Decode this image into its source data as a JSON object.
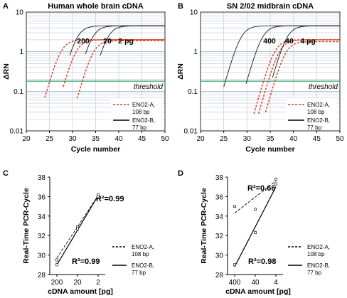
{
  "chart_data": [
    {
      "panel": "A",
      "type": "line",
      "title": "Human whole brain cDNA",
      "xlabel": "Cycle number",
      "ylabel": "ΔRN",
      "xlim": [
        20,
        50
      ],
      "ylim_log": [
        0.01,
        10
      ],
      "log_y": true,
      "grid": true,
      "xticks": [
        "20",
        "25",
        "30",
        "35",
        "40",
        "45",
        "50"
      ],
      "yticks": [
        "0.01",
        "0.1",
        "1",
        "10"
      ],
      "threshold": {
        "label": "threshold",
        "value": 0.18,
        "color": "#2e9e6b"
      },
      "annotations": [
        "200",
        "20",
        "2 pg"
      ],
      "legend_position": "bottom-right",
      "series": [
        {
          "name": "ENO2-A, 108 bp",
          "style": "dashed",
          "color": "#d9432a",
          "curves": [
            {
              "midpoint": 27.5,
              "plateau": 2.0,
              "start": 24
            },
            {
              "midpoint": 30.8,
              "plateau": 2.0,
              "start": 28
            },
            {
              "midpoint": 34.5,
              "plateau": 1.9,
              "start": 31
            }
          ]
        },
        {
          "name": "ENO2-B, 77 bp",
          "style": "solid",
          "color": "#000000",
          "curves": [
            {
              "midpoint": 31.0,
              "plateau": 4.5,
              "start": 29.4
            },
            {
              "midpoint": 34.3,
              "plateau": 4.5,
              "start": 32.8
            },
            {
              "midpoint": 37.6,
              "plateau": 4.5,
              "start": 36.0
            }
          ]
        }
      ]
    },
    {
      "panel": "B",
      "type": "line",
      "title": "SN 2/02 midbrain cDNA",
      "xlabel": "Cycle number",
      "ylabel": "ΔRN",
      "xlim": [
        20,
        50
      ],
      "ylim_log": [
        0.01,
        10
      ],
      "log_y": true,
      "grid": true,
      "xticks": [
        "20",
        "25",
        "30",
        "35",
        "40",
        "45",
        "50"
      ],
      "yticks": [
        "0.01",
        "0.1",
        "1",
        "10"
      ],
      "threshold": {
        "label": "threshold",
        "value": 0.18,
        "color": "#2e9e6b"
      },
      "annotations": [
        "400",
        "40",
        "4 pg"
      ],
      "legend_position": "bottom-right",
      "series": [
        {
          "name": "ENO2-A, 108 bp",
          "style": "dashed",
          "color": "#d9432a",
          "curves": [
            {
              "midpoint": 36.0,
              "plateau": 2.0,
              "start": 31.5
            },
            {
              "midpoint": 37.0,
              "plateau": 2.0,
              "start": 32.5
            },
            {
              "midpoint": 38.3,
              "plateau": 1.8,
              "start": 34.0
            }
          ]
        },
        {
          "name": "ENO2-B, 77 bp",
          "style": "solid",
          "color": "#000000",
          "curves": [
            {
              "midpoint": 28.7,
              "plateau": 4.5,
              "start": 25.0
            },
            {
              "midpoint": 33.3,
              "plateau": 4.5,
              "start": 29.8
            },
            {
              "midpoint": 38.6,
              "plateau": 4.5,
              "start": 35.5
            }
          ]
        }
      ]
    },
    {
      "panel": "C",
      "type": "scatter",
      "xlabel": "cDNA amount [pg]",
      "ylabel": "Real-Time PCR-Cycle",
      "categories": [
        "200",
        "20",
        "2"
      ],
      "ylim": [
        28,
        38
      ],
      "yticks": [
        "28",
        "30",
        "32",
        "34",
        "36",
        "38"
      ],
      "legend_position": "right",
      "series": [
        {
          "name": "ENO2-A, 108 bp",
          "style": "dashed",
          "r2": "R²=0.99",
          "values": [
            29.5,
            32.9,
            36.2
          ],
          "fit": [
            29.7,
            36.1
          ]
        },
        {
          "name": "ENO2-B, 77 bp",
          "style": "solid",
          "r2": "R²=0.99",
          "values": [
            29.0,
            32.7,
            36.0
          ],
          "fit": [
            29.0,
            36.1
          ]
        }
      ]
    },
    {
      "panel": "D",
      "type": "scatter",
      "xlabel": "cDNA amount [pg]",
      "ylabel": "Real-Time PCR-Cycle",
      "categories": [
        "400",
        "40",
        "4"
      ],
      "ylim": [
        28,
        38
      ],
      "yticks": [
        "28",
        "30",
        "32",
        "34",
        "36",
        "38"
      ],
      "legend_position": "right",
      "series": [
        {
          "name": "ENO2-A, 108 bp",
          "style": "dashed",
          "r2": "R²=0.66",
          "values": [
            35.0,
            34.7,
            37.8
          ],
          "fit": [
            34.3,
            37.6
          ]
        },
        {
          "name": "ENO2-B, 77 bp",
          "style": "solid",
          "r2": "R²=0.98",
          "values": [
            29.0,
            32.3,
            37.3
          ],
          "fit": [
            28.8,
            37.0
          ]
        }
      ]
    }
  ]
}
